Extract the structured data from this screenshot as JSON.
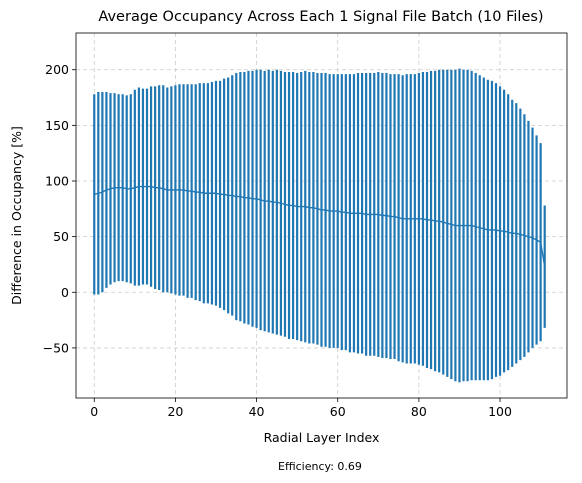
{
  "chart_data": {
    "type": "errorbar",
    "title": "Average Occupancy Across Each 1 Signal File Batch (10 Files)",
    "xlabel": "Radial Layer Index",
    "ylabel": "Difference in Occupancy [%]",
    "xlim": [
      -4.5,
      116.5
    ],
    "ylim": [
      -95,
      233
    ],
    "xticks": [
      0,
      20,
      40,
      60,
      80,
      100
    ],
    "yticks": [
      -50,
      0,
      50,
      100,
      150,
      200
    ],
    "grid": true,
    "grid_style": "dashed",
    "series_color": "#1f77b4",
    "annotation": "Efficiency: 0.69",
    "series": [
      {
        "x": [
          0,
          1,
          2,
          3,
          4,
          5,
          6,
          7,
          8,
          9,
          10,
          11,
          12,
          13,
          14,
          15,
          16,
          17,
          18,
          19,
          20,
          21,
          22,
          23,
          24,
          25,
          26,
          27,
          28,
          29,
          30,
          31,
          32,
          33,
          34,
          35,
          36,
          37,
          38,
          39,
          40,
          41,
          42,
          43,
          44,
          45,
          46,
          47,
          48,
          49,
          50,
          51,
          52,
          53,
          54,
          55,
          56,
          57,
          58,
          59,
          60,
          61,
          62,
          63,
          64,
          65,
          66,
          67,
          68,
          69,
          70,
          71,
          72,
          73,
          74,
          75,
          76,
          77,
          78,
          79,
          80,
          81,
          82,
          83,
          84,
          85,
          86,
          87,
          88,
          89,
          90,
          91,
          92,
          93,
          94,
          95,
          96,
          97,
          98,
          99,
          100,
          101,
          102,
          103,
          104,
          105,
          106,
          107,
          108,
          109,
          110,
          111
        ],
        "y": [
          88,
          89,
          90,
          92,
          93,
          94,
          94,
          94,
          93,
          93,
          94,
          95,
          95,
          95,
          95,
          94,
          94,
          93,
          92,
          92,
          92,
          92,
          92,
          91,
          91,
          90,
          90,
          89,
          89,
          89,
          89,
          88,
          88,
          87,
          87,
          86,
          86,
          85,
          85,
          84,
          84,
          83,
          82,
          82,
          81,
          81,
          80,
          79,
          78,
          78,
          77,
          77,
          77,
          76,
          76,
          75,
          74,
          74,
          73,
          73,
          73,
          72,
          72,
          71,
          71,
          71,
          71,
          70,
          70,
          70,
          70,
          69,
          69,
          68,
          68,
          67,
          66,
          66,
          66,
          66,
          66,
          66,
          65,
          65,
          64,
          64,
          63,
          62,
          61,
          60,
          60,
          60,
          60,
          60,
          59,
          58,
          57,
          56,
          56,
          56,
          55,
          55,
          54,
          53,
          53,
          52,
          51,
          50,
          49,
          47,
          45,
          23
        ],
        "yerr": [
          90,
          91,
          90,
          88,
          86,
          85,
          84,
          84,
          84,
          85,
          88,
          89,
          88,
          88,
          90,
          91,
          92,
          93,
          92,
          93,
          94,
          95,
          95,
          96,
          96,
          97,
          98,
          99,
          99,
          100,
          101,
          102,
          104,
          106,
          108,
          111,
          112,
          113,
          114,
          115,
          116,
          117,
          117,
          118,
          118,
          119,
          119,
          119,
          120,
          120,
          120,
          121,
          122,
          122,
          122,
          122,
          123,
          123,
          123,
          123,
          123,
          124,
          124,
          125,
          125,
          126,
          126,
          127,
          127,
          127,
          128,
          128,
          128,
          128,
          128,
          129,
          129,
          130,
          130,
          130,
          131,
          132,
          133,
          134,
          135,
          136,
          137,
          138,
          139,
          140,
          141,
          140,
          140,
          139,
          138,
          137,
          136,
          135,
          134,
          132,
          130,
          127,
          124,
          120,
          117,
          113,
          109,
          104,
          99,
          94,
          89,
          55
        ]
      }
    ]
  }
}
